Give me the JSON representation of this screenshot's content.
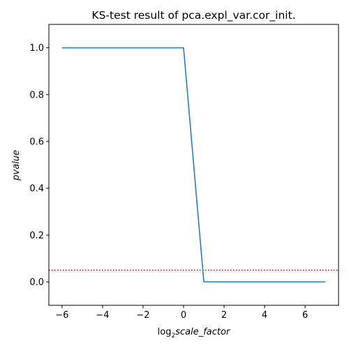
{
  "chart_data": {
    "type": "line",
    "title": "KS-test result of pca.expl_var.cor_init.",
    "xlabel": {
      "prefix": "log",
      "subscript": "2",
      "suffix": "scale_factor"
    },
    "ylabel": "pvalue",
    "xlim": [
      -6.65,
      7.65
    ],
    "ylim": [
      -0.1,
      1.1
    ],
    "xticks": [
      -6,
      -4,
      -2,
      0,
      2,
      4,
      6
    ],
    "xtick_labels": [
      "−6",
      "−4",
      "−2",
      "0",
      "2",
      "4",
      "6"
    ],
    "yticks": [
      0.0,
      0.2,
      0.4,
      0.6,
      0.8,
      1.0
    ],
    "ytick_labels": [
      "0.0",
      "0.2",
      "0.4",
      "0.6",
      "0.8",
      "1.0"
    ],
    "series": [
      {
        "color": "#1f77b4",
        "x": [
          -6,
          -5,
          -4,
          -3,
          -2,
          -1,
          0,
          1,
          2,
          3,
          4,
          5,
          6,
          7
        ],
        "y": [
          1.0,
          1.0,
          1.0,
          1.0,
          1.0,
          1.0,
          1.0,
          0.0,
          0.0,
          0.0,
          0.0,
          0.0,
          0.0,
          0.0
        ]
      }
    ],
    "threshold": {
      "y": 0.05,
      "color": "#ff0000",
      "style": "dotted"
    },
    "grid": false,
    "legend": "none"
  }
}
